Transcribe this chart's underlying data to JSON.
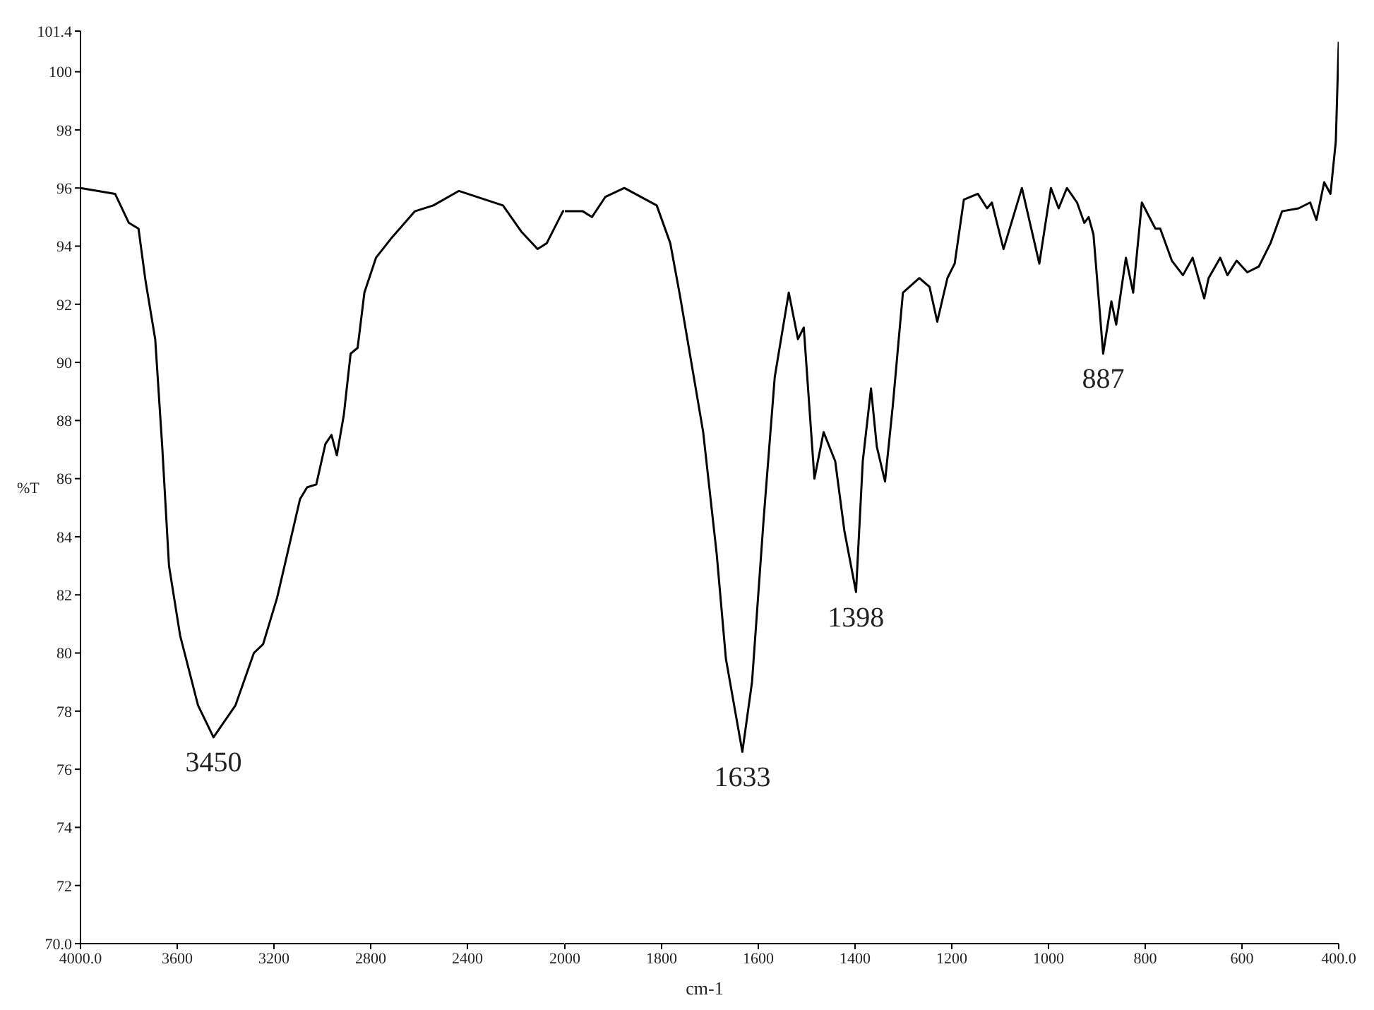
{
  "chart_data": [
    {
      "type": "line",
      "ylabel": "%T",
      "x": [
        4000,
        3857,
        3800,
        3760,
        3731,
        3691,
        3662,
        3634,
        3588,
        3514,
        3450,
        3359,
        3283,
        3245,
        3187,
        3092,
        3063,
        3025,
        2987,
        2962,
        2940,
        2911,
        2883,
        2854,
        2826,
        2778,
        2712,
        2617,
        2541,
        2435,
        2253,
        2177,
        2110,
        2072,
        2005,
        2000
      ],
      "series": [
        {
          "color": "#000000",
          "values": [
            96.0,
            95.8,
            94.8,
            94.6,
            92.8,
            90.8,
            87.1,
            83.0,
            80.6,
            78.2,
            77.1,
            78.2,
            80.0,
            80.3,
            81.9,
            85.3,
            85.7,
            85.8,
            87.2,
            87.5,
            86.8,
            88.2,
            90.3,
            90.5,
            92.4,
            93.6,
            94.3,
            95.2,
            95.4,
            95.9,
            95.4,
            94.5,
            93.9,
            94.1,
            95.2,
            95.2
          ]
        }
      ],
      "xlim": [
        4000,
        2000
      ],
      "xticks": [
        {
          "value": 4000,
          "label": "4000.0"
        },
        3600,
        3200,
        2800,
        2400
      ],
      "ylim": [
        70,
        101.4
      ],
      "yticks": [
        {
          "value": 70,
          "label": "70.0"
        },
        72,
        74,
        76,
        78,
        80,
        82,
        84,
        86,
        88,
        90,
        92,
        94,
        96,
        98,
        100,
        101.4
      ],
      "annotations": [
        {
          "text": "3450",
          "x": 3450,
          "y": 77.1
        }
      ],
      "grid": false,
      "legend": false,
      "marker": "none",
      "line_style": "solid"
    },
    {
      "type": "line",
      "xlabel": "cm-1",
      "x": [
        2000,
        1963,
        1944,
        1916,
        1877,
        1810,
        1782,
        1762,
        1714,
        1686,
        1667,
        1633,
        1613,
        1589,
        1566,
        1537,
        1518,
        1506,
        1484,
        1465,
        1441,
        1422,
        1398,
        1384,
        1367,
        1355,
        1338,
        1322,
        1301,
        1267,
        1246,
        1230,
        1209,
        1194,
        1175,
        1146,
        1127,
        1117,
        1093,
        1055,
        1019,
        995,
        979,
        962,
        941,
        926,
        917,
        907,
        887,
        870,
        860,
        840,
        825,
        807,
        779,
        769,
        745,
        722,
        702,
        678,
        669,
        645,
        630,
        611,
        589,
        565,
        541,
        517,
        483,
        459,
        446,
        430,
        417,
        406,
        400
      ],
      "series": [
        {
          "color": "#000000",
          "values": [
            95.2,
            95.2,
            95.0,
            95.7,
            96.0,
            95.4,
            94.1,
            92.3,
            87.6,
            83.4,
            79.8,
            76.6,
            79.0,
            84.6,
            89.5,
            92.4,
            90.8,
            91.2,
            86.0,
            87.6,
            86.6,
            84.2,
            82.1,
            86.6,
            89.1,
            87.1,
            85.9,
            88.5,
            92.4,
            92.9,
            92.6,
            91.4,
            92.9,
            93.4,
            95.6,
            95.8,
            95.3,
            95.5,
            93.9,
            96.0,
            93.4,
            96.0,
            95.3,
            96.0,
            95.5,
            94.8,
            95.0,
            94.4,
            90.3,
            92.1,
            91.3,
            93.6,
            92.4,
            95.5,
            94.6,
            94.6,
            93.5,
            93.0,
            93.6,
            92.2,
            92.9,
            93.6,
            93.0,
            93.5,
            93.1,
            93.3,
            94.1,
            95.2,
            95.3,
            95.5,
            94.9,
            96.2,
            95.8,
            97.6,
            101.0
          ]
        }
      ],
      "xlim": [
        2000,
        400
      ],
      "xticks": [
        2000,
        1800,
        1600,
        1400,
        1200,
        1000,
        800,
        600,
        {
          "value": 400,
          "label": "400.0"
        }
      ],
      "ylim": [
        70,
        101.4
      ],
      "tick_labels": "x",
      "annotations": [
        {
          "text": "1633",
          "x": 1633,
          "y": 76.6
        },
        {
          "text": "1398",
          "x": 1398,
          "y": 82.1
        },
        {
          "text": "887",
          "x": 887,
          "y": 90.3
        }
      ],
      "grid": false,
      "legend": false,
      "marker": "none",
      "line_style": "solid"
    }
  ]
}
